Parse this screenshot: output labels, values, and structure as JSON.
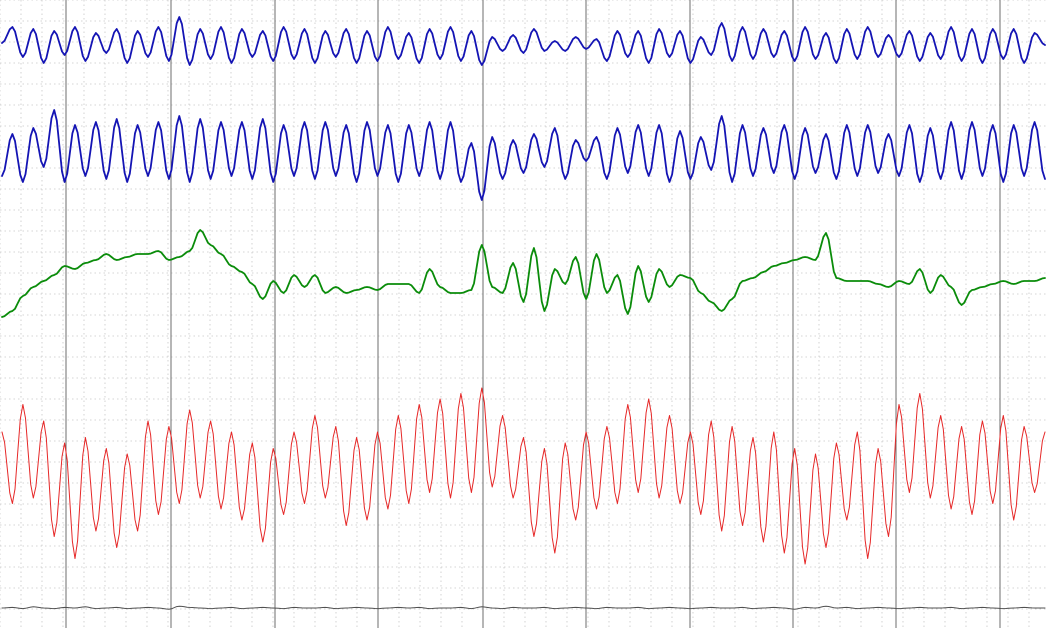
{
  "chart_data": {
    "type": "line",
    "title": "",
    "xlabel": "",
    "ylabel": "",
    "grid": true,
    "legend": "none",
    "x_range": [
      0,
      100
    ],
    "epoch_markers": [
      0,
      10,
      20,
      30,
      40,
      50,
      60,
      70,
      80,
      90,
      100
    ],
    "colors": {
      "background": "#ffffff",
      "grid_minor": "#c8c8c8",
      "grid_major": "#6e6e6e",
      "channel_1": "#1414b4",
      "channel_2": "#1414b4",
      "channel_3": "#0a8c0a",
      "channel_4": "#e62828",
      "channel_5": "#505050"
    },
    "series": [
      {
        "x": [
          0,
          1,
          2,
          3,
          4,
          5,
          6,
          7,
          8,
          9,
          10,
          11,
          12,
          13,
          14,
          15,
          16,
          17,
          18,
          19,
          20,
          21,
          22,
          23,
          24,
          25,
          26,
          27,
          28,
          29,
          30,
          31,
          32,
          33,
          34,
          35,
          36,
          37,
          38,
          39,
          40,
          41,
          42,
          43,
          44,
          45,
          46,
          47,
          48,
          49,
          50,
          51,
          52,
          53,
          54,
          55,
          56,
          57,
          58,
          59,
          60,
          61,
          62,
          63,
          64,
          65,
          66,
          67,
          68,
          69,
          70,
          71,
          72,
          73,
          74,
          75,
          76,
          77,
          78,
          79,
          80,
          81,
          82,
          83,
          84,
          85,
          86,
          87,
          88,
          89,
          90,
          91,
          92,
          93,
          94,
          95,
          96,
          97,
          98,
          99,
          100
        ],
        "values": [
          0.1,
          0.9,
          -0.6,
          0.8,
          -0.9,
          0.7,
          -0.5,
          0.9,
          -0.8,
          0.6,
          -0.4,
          0.8,
          -0.9,
          0.7,
          -0.6,
          0.9,
          -0.8,
          1.4,
          -1.0,
          0.8,
          -0.7,
          0.9,
          -0.9,
          0.8,
          -0.6,
          0.7,
          -0.8,
          0.9,
          -0.7,
          0.8,
          -0.9,
          0.7,
          -0.6,
          0.8,
          -0.9,
          0.7,
          -0.8,
          0.9,
          -0.7,
          0.6,
          -0.9,
          0.8,
          -0.7,
          0.9,
          -0.8,
          0.7,
          -1.0,
          0.4,
          -0.3,
          0.5,
          -0.4,
          0.8,
          -0.3,
          0.2,
          -0.3,
          0.4,
          -0.2,
          0.3,
          -0.8,
          0.7,
          -0.6,
          0.7,
          -0.9,
          0.8,
          -0.6,
          0.7,
          -0.9,
          0.4,
          -0.5,
          1.1,
          -0.8,
          0.9,
          -0.7,
          0.8,
          -0.6,
          0.7,
          -0.8,
          0.9,
          -0.7,
          0.6,
          -0.9,
          0.8,
          -0.7,
          0.9,
          -0.6,
          0.5,
          -0.6,
          0.7,
          -0.8,
          0.6,
          -0.7,
          0.9,
          -0.8,
          0.8,
          -0.9,
          0.8,
          -0.7,
          0.8,
          -0.9,
          0.6,
          0.0
        ]
      },
      {
        "x": [
          0,
          1,
          2,
          3,
          4,
          5,
          6,
          7,
          8,
          9,
          10,
          11,
          12,
          13,
          14,
          15,
          16,
          17,
          18,
          19,
          20,
          21,
          22,
          23,
          24,
          25,
          26,
          27,
          28,
          29,
          30,
          31,
          32,
          33,
          34,
          35,
          36,
          37,
          38,
          39,
          40,
          41,
          42,
          43,
          44,
          45,
          46,
          47,
          48,
          49,
          50,
          51,
          52,
          53,
          54,
          55,
          56,
          57,
          58,
          59,
          60,
          61,
          62,
          63,
          64,
          65,
          66,
          67,
          68,
          69,
          70,
          71,
          72,
          73,
          74,
          75,
          76,
          77,
          78,
          79,
          80,
          81,
          82,
          83,
          84,
          85,
          86,
          87,
          88,
          89,
          90,
          91,
          92,
          93,
          94,
          95,
          96,
          97,
          98,
          99,
          100
        ],
        "values": [
          -0.8,
          0.6,
          -1.0,
          0.8,
          -0.5,
          1.4,
          -1.0,
          0.9,
          -0.8,
          1.0,
          -0.9,
          1.1,
          -1.0,
          0.9,
          -0.8,
          1.0,
          -0.9,
          1.2,
          -1.0,
          1.1,
          -0.9,
          1.0,
          -0.8,
          1.0,
          -0.9,
          1.1,
          -1.0,
          0.9,
          -0.8,
          1.0,
          -0.9,
          1.0,
          -0.8,
          0.9,
          -1.0,
          1.0,
          -0.8,
          0.9,
          -1.0,
          0.9,
          -0.8,
          1.0,
          -0.9,
          1.0,
          -1.0,
          0.3,
          -1.6,
          0.5,
          -0.9,
          0.4,
          -0.7,
          0.6,
          -0.5,
          0.8,
          -0.9,
          0.4,
          -0.3,
          0.5,
          -0.9,
          0.8,
          -0.7,
          0.9,
          -0.8,
          0.9,
          -1.0,
          0.7,
          -0.9,
          0.5,
          -0.6,
          1.2,
          -1.0,
          0.9,
          -0.8,
          0.8,
          -0.7,
          0.9,
          -0.9,
          0.8,
          -0.7,
          0.6,
          -0.9,
          0.9,
          -0.8,
          0.9,
          -0.7,
          0.6,
          -0.8,
          0.9,
          -1.0,
          0.8,
          -0.9,
          1.0,
          -0.9,
          1.0,
          -0.8,
          0.9,
          -1.0,
          0.9,
          -0.8,
          1.0,
          -0.9
        ]
      },
      {
        "x": [
          0,
          1,
          2,
          3,
          4,
          5,
          6,
          7,
          8,
          9,
          10,
          11,
          12,
          13,
          14,
          15,
          16,
          17,
          18,
          19,
          20,
          21,
          22,
          23,
          24,
          25,
          26,
          27,
          28,
          29,
          30,
          31,
          32,
          33,
          34,
          35,
          36,
          37,
          38,
          39,
          40,
          41,
          42,
          43,
          44,
          45,
          46,
          47,
          48,
          49,
          50,
          51,
          52,
          53,
          54,
          55,
          56,
          57,
          58,
          59,
          60,
          61,
          62,
          63,
          64,
          65,
          66,
          67,
          68,
          69,
          70,
          71,
          72,
          73,
          74,
          75,
          76,
          77,
          78,
          79,
          80,
          81,
          82,
          83,
          84,
          85,
          86,
          87,
          88,
          89,
          90,
          91,
          92,
          93,
          94,
          95,
          96,
          97,
          98,
          99,
          100
        ],
        "values": [
          -1.4,
          -1.2,
          -0.7,
          -0.4,
          -0.2,
          0.0,
          0.3,
          0.2,
          0.4,
          0.5,
          0.7,
          0.5,
          0.6,
          0.7,
          0.7,
          0.8,
          0.5,
          0.6,
          0.8,
          1.5,
          1.0,
          0.7,
          0.3,
          0.1,
          -0.3,
          -0.8,
          -0.2,
          -0.6,
          0.0,
          -0.4,
          0.0,
          -0.6,
          -0.4,
          -0.6,
          -0.5,
          -0.4,
          -0.5,
          -0.3,
          -0.3,
          -0.3,
          -0.6,
          0.2,
          -0.4,
          -0.6,
          -0.6,
          -0.5,
          1.0,
          -0.4,
          -0.6,
          0.4,
          -0.9,
          0.9,
          -1.2,
          0.2,
          -0.3,
          0.6,
          -0.8,
          0.7,
          -0.6,
          0.0,
          -1.3,
          0.3,
          -0.9,
          0.2,
          -0.4,
          0.0,
          -0.1,
          -0.6,
          -0.9,
          -1.2,
          -0.8,
          -0.2,
          -0.1,
          0.1,
          0.3,
          0.4,
          0.5,
          0.6,
          0.5,
          1.4,
          -0.1,
          -0.2,
          -0.2,
          -0.2,
          -0.3,
          -0.4,
          -0.2,
          -0.3,
          0.2,
          -0.6,
          0.0,
          -0.4,
          -1.0,
          -0.5,
          -0.4,
          -0.3,
          -0.2,
          -0.3,
          -0.2,
          -0.2,
          -0.1
        ]
      },
      {
        "x": [
          0,
          1,
          2,
          3,
          4,
          5,
          6,
          7,
          8,
          9,
          10,
          11,
          12,
          13,
          14,
          15,
          16,
          17,
          18,
          19,
          20,
          21,
          22,
          23,
          24,
          25,
          26,
          27,
          28,
          29,
          30,
          31,
          32,
          33,
          34,
          35,
          36,
          37,
          38,
          39,
          40,
          41,
          42,
          43,
          44,
          45,
          46,
          47,
          48,
          49,
          50,
          51,
          52,
          53,
          54,
          55,
          56,
          57,
          58,
          59,
          60,
          61,
          62,
          63,
          64,
          65,
          66,
          67,
          68,
          69,
          70,
          71,
          72,
          73,
          74,
          75,
          76,
          77,
          78,
          79,
          80,
          81,
          82,
          83,
          84,
          85,
          86,
          87,
          88,
          89,
          90,
          91,
          92,
          93,
          94,
          95,
          96,
          97,
          98,
          99,
          100
        ],
        "values": [
          0.6,
          -0.7,
          1.1,
          -0.6,
          0.8,
          -1.3,
          0.4,
          -1.7,
          0.5,
          -1.2,
          0.3,
          -1.5,
          0.2,
          -1.2,
          0.8,
          -0.9,
          0.7,
          -0.7,
          1.0,
          -0.6,
          0.8,
          -0.8,
          0.6,
          -1.0,
          0.4,
          -1.4,
          0.3,
          -0.9,
          0.6,
          -0.7,
          0.9,
          -0.6,
          0.7,
          -1.1,
          0.5,
          -1.0,
          0.6,
          -0.8,
          0.9,
          -0.7,
          1.1,
          -0.5,
          1.2,
          -0.6,
          1.3,
          -0.5,
          1.4,
          -0.4,
          0.9,
          -0.6,
          0.5,
          -1.3,
          0.3,
          -1.6,
          0.4,
          -1.0,
          0.6,
          -0.8,
          0.7,
          -0.7,
          1.1,
          -0.5,
          1.2,
          -0.6,
          0.9,
          -0.7,
          0.6,
          -0.9,
          0.8,
          -1.2,
          0.7,
          -1.1,
          0.5,
          -1.4,
          0.6,
          -1.6,
          0.3,
          -1.8,
          0.2,
          -1.5,
          0.4,
          -1.0,
          0.6,
          -1.7,
          0.3,
          -1.3,
          1.1,
          -0.5,
          1.3,
          -0.6,
          0.9,
          -0.8,
          0.7,
          -0.9,
          0.8,
          -0.7,
          0.9,
          -1.0,
          0.7,
          -0.5,
          0.6
        ]
      },
      {
        "x": [
          0,
          1,
          2,
          3,
          4,
          5,
          6,
          7,
          8,
          9,
          10,
          11,
          12,
          13,
          14,
          15,
          16,
          17,
          18,
          19,
          20,
          21,
          22,
          23,
          24,
          25,
          26,
          27,
          28,
          29,
          30,
          31,
          32,
          33,
          34,
          35,
          36,
          37,
          38,
          39,
          40,
          41,
          42,
          43,
          44,
          45,
          46,
          47,
          48,
          49,
          50,
          51,
          52,
          53,
          54,
          55,
          56,
          57,
          58,
          59,
          60,
          61,
          62,
          63,
          64,
          65,
          66,
          67,
          68,
          69,
          70,
          71,
          72,
          73,
          74,
          75,
          76,
          77,
          78,
          79,
          80,
          81,
          82,
          83,
          84,
          85,
          86,
          87,
          88,
          89,
          90,
          91,
          92,
          93,
          94,
          95,
          96,
          97,
          98,
          99,
          100
        ],
        "values": [
          0.0,
          0.1,
          -0.1,
          0.2,
          0.0,
          -0.1,
          0.1,
          0.0,
          0.2,
          -0.1,
          0.0,
          0.1,
          -0.1,
          0.0,
          0.1,
          0.0,
          -0.2,
          0.3,
          0.1,
          0.0,
          -0.1,
          0.0,
          0.1,
          -0.1,
          0.0,
          0.1,
          0.0,
          -0.1,
          0.1,
          0.0,
          0.0,
          0.1,
          -0.1,
          0.0,
          0.1,
          0.0,
          -0.1,
          0.0,
          0.1,
          0.0,
          0.1,
          -0.1,
          0.0,
          0.0,
          0.1,
          -0.1,
          0.2,
          0.0,
          -0.1,
          0.1,
          0.0,
          0.0,
          0.1,
          -0.1,
          0.0,
          0.1,
          0.0,
          -0.1,
          0.1,
          0.0,
          0.0,
          0.1,
          -0.1,
          0.0,
          0.1,
          0.0,
          -0.1,
          0.0,
          0.1,
          0.0,
          0.0,
          0.1,
          -0.1,
          0.0,
          0.1,
          0.0,
          -0.2,
          0.1,
          0.0,
          0.3,
          0.0,
          0.1,
          -0.1,
          0.0,
          0.1,
          0.0,
          -0.1,
          0.0,
          0.1,
          0.0,
          0.0,
          0.1,
          -0.1,
          0.0,
          0.1,
          0.0,
          -0.1,
          0.0,
          0.1,
          0.0,
          0.0
        ]
      }
    ]
  }
}
